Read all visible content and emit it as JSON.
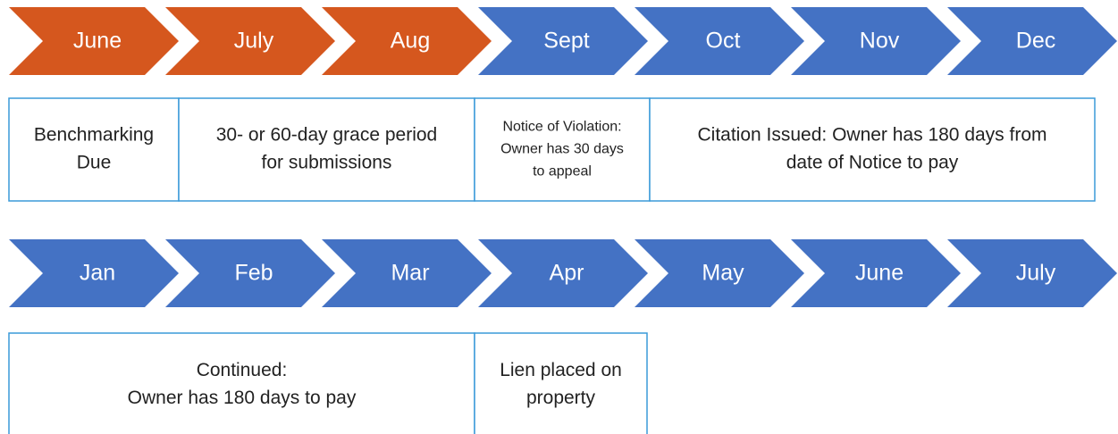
{
  "rows": [
    {
      "chevrons": [
        {
          "label": "June",
          "color": "#d5571e"
        },
        {
          "label": "July",
          "color": "#d5571e"
        },
        {
          "label": "Aug",
          "color": "#d5571e"
        },
        {
          "label": "Sept",
          "color": "#4472c4"
        },
        {
          "label": "Oct",
          "color": "#4472c4"
        },
        {
          "label": "Nov",
          "color": "#4472c4"
        },
        {
          "label": "Dec",
          "color": "#4472c4"
        }
      ],
      "boxes": [
        {
          "lines": [
            "Benchmarking",
            "Due"
          ]
        },
        {
          "lines": [
            "30- or 60-day grace period",
            "for submissions"
          ]
        },
        {
          "lines": [
            "Notice of Violation:",
            "Owner has 30 days",
            "to appeal"
          ]
        },
        {
          "lines": [
            "Citation Issued: Owner has 180 days from",
            "date of Notice to pay"
          ]
        }
      ]
    },
    {
      "chevrons": [
        {
          "label": "Jan",
          "color": "#4472c4"
        },
        {
          "label": "Feb",
          "color": "#4472c4"
        },
        {
          "label": "Mar",
          "color": "#4472c4"
        },
        {
          "label": "Apr",
          "color": "#4472c4"
        },
        {
          "label": "May",
          "color": "#4472c4"
        },
        {
          "label": "June",
          "color": "#4472c4"
        },
        {
          "label": "July",
          "color": "#4472c4"
        }
      ],
      "boxes": [
        {
          "lines": [
            "Continued:",
            "Owner has 180 days to pay"
          ]
        },
        {
          "lines": [
            "Lien placed on",
            "property"
          ]
        }
      ]
    }
  ]
}
